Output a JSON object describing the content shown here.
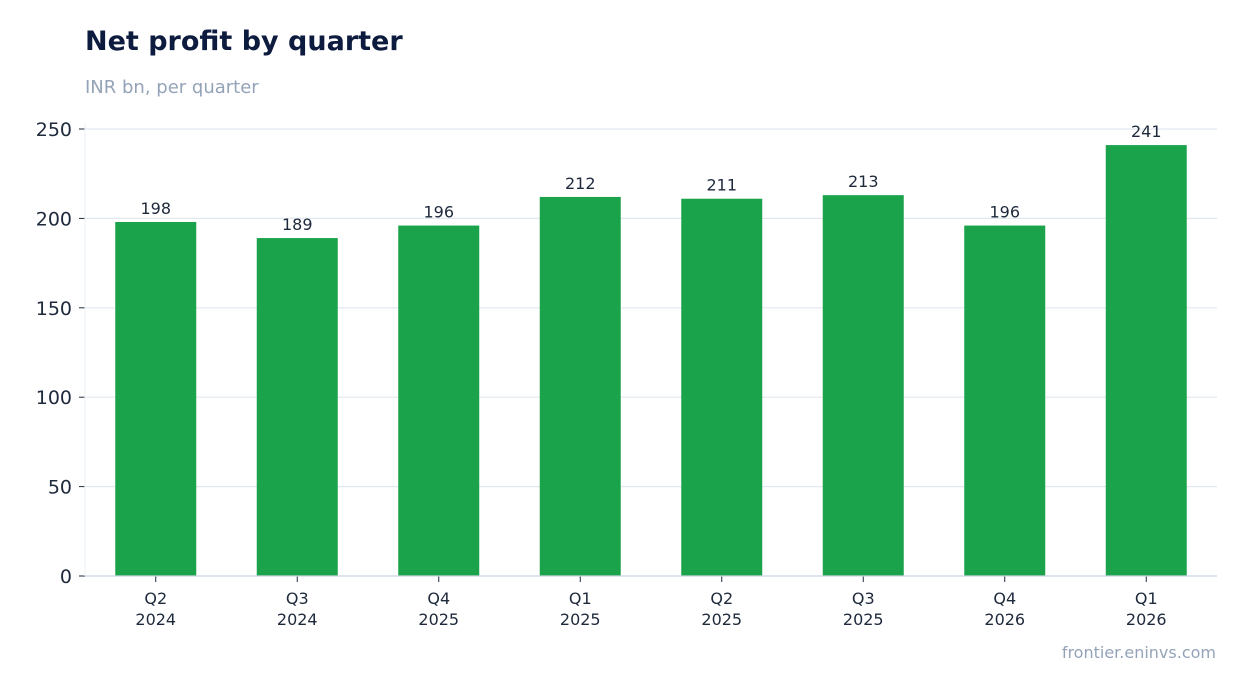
{
  "chart_data": {
    "type": "bar",
    "title": "Net profit by quarter",
    "subtitle": "INR bn, per quarter",
    "xlabel": "",
    "ylabel": "",
    "categories": [
      [
        "Q2",
        "2024"
      ],
      [
        "Q3",
        "2024"
      ],
      [
        "Q4",
        "2025"
      ],
      [
        "Q1",
        "2025"
      ],
      [
        "Q2",
        "2025"
      ],
      [
        "Q3",
        "2025"
      ],
      [
        "Q4",
        "2026"
      ],
      [
        "Q1",
        "2026"
      ]
    ],
    "values": [
      198,
      189,
      196,
      212,
      211,
      213,
      196,
      241
    ],
    "ylim": [
      0,
      250
    ],
    "yticks": [
      0,
      50,
      100,
      150,
      200,
      250
    ],
    "grid": true,
    "bar_color": "#1aa34a",
    "grid_color": "#e2e8f0",
    "axis_color": "#cbd5e1"
  },
  "source": "frontier.eninvs.com"
}
